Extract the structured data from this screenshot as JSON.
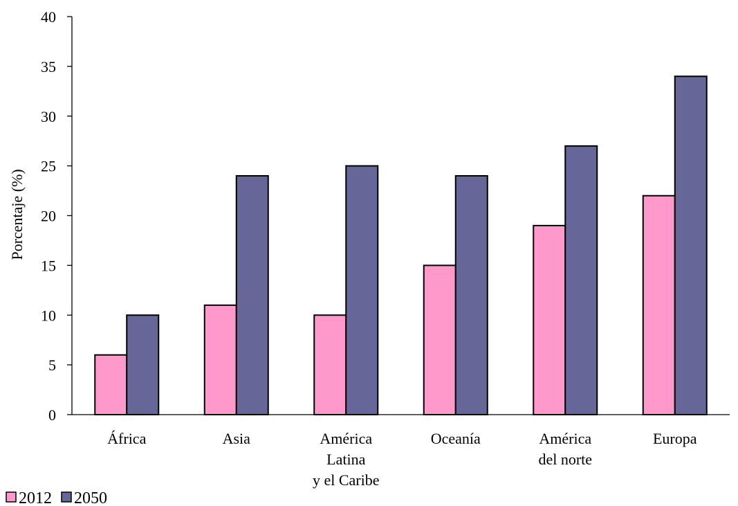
{
  "chart_data": {
    "type": "bar",
    "categories": [
      [
        "África"
      ],
      [
        "Asia"
      ],
      [
        "América",
        "Latina",
        "y el Caribe"
      ],
      [
        "Oceanía"
      ],
      [
        "América",
        "del norte"
      ],
      [
        "Europa"
      ]
    ],
    "series": [
      {
        "name": "2012",
        "values": [
          6,
          11,
          10,
          15,
          19,
          22
        ],
        "color": "#FF99CC"
      },
      {
        "name": "2050",
        "values": [
          10,
          24,
          25,
          24,
          27,
          34
        ],
        "color": "#666699"
      }
    ],
    "ylabel": "Porcentaje (%)",
    "xlabel": "",
    "ylim": [
      0,
      40
    ],
    "yticks": [
      "0",
      "5",
      "10",
      "15",
      "20",
      "25",
      "30",
      "35",
      "40"
    ],
    "grid": false,
    "legend_position": "bottom-left"
  }
}
